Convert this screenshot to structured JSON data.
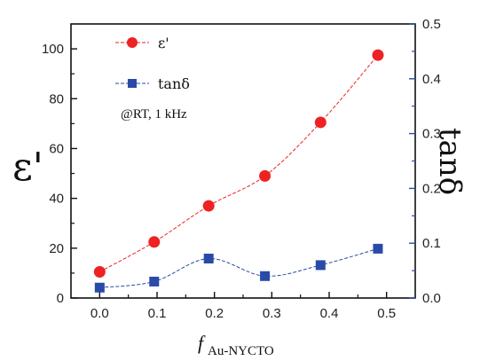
{
  "chart_data": {
    "type": "line",
    "x": [
      0.0,
      0.1,
      0.2,
      0.3,
      0.4,
      0.5
    ],
    "x_positions": [
      0.0,
      0.095,
      0.19,
      0.288,
      0.385,
      0.485
    ],
    "xlim": [
      -0.05,
      0.55
    ],
    "x_ticks": [
      "0.0",
      "0.1",
      "0.2",
      "0.3",
      "0.4",
      "0.5"
    ],
    "xlabel": {
      "main": "f",
      "sub": "Au-NYCTO"
    },
    "ylabel_left": "ε'",
    "ylabel_right": "tanδ",
    "ylim_left": [
      0,
      110
    ],
    "ylim_right": [
      0,
      0.5
    ],
    "y_ticks_left": [
      "0",
      "20",
      "40",
      "60",
      "80",
      "100"
    ],
    "y_ticks_right": [
      "0.0",
      "0.1",
      "0.2",
      "0.3",
      "0.4",
      "0.5"
    ],
    "series": [
      {
        "name": "ε'",
        "axis": "left",
        "color": "#ee2222",
        "marker": "circle",
        "values": [
          10.5,
          22.5,
          37.0,
          49.0,
          70.5,
          97.5
        ]
      },
      {
        "name": "tanδ",
        "axis": "right",
        "color": "#2a4aa8",
        "marker": "square",
        "values": [
          0.019,
          0.03,
          0.072,
          0.04,
          0.06,
          0.09
        ]
      }
    ],
    "annotation": "@RT, 1 kHz",
    "legend_position": "top-left",
    "grid": false
  }
}
